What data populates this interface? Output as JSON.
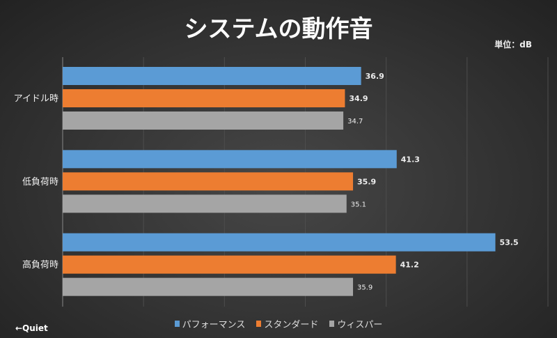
{
  "chart_data": {
    "type": "bar",
    "orientation": "horizontal",
    "title": "システムの動作音",
    "unit_label": "単位：dB",
    "categories": [
      "アイドル時",
      "低負荷時",
      "高負荷時"
    ],
    "series": [
      {
        "name": "パフォーマンス",
        "color": "#5b9bd5",
        "values": [
          36.9,
          41.3,
          53.5
        ]
      },
      {
        "name": "スタンダード",
        "color": "#ed7d31",
        "values": [
          34.9,
          35.9,
          41.2
        ]
      },
      {
        "name": "ウィスパー",
        "color": "#a5a5a5",
        "values": [
          34.7,
          35.1,
          35.9
        ]
      }
    ],
    "xlim": [
      0,
      60
    ],
    "grid": true,
    "legend": "bottom",
    "annotation": "←Quiet"
  }
}
